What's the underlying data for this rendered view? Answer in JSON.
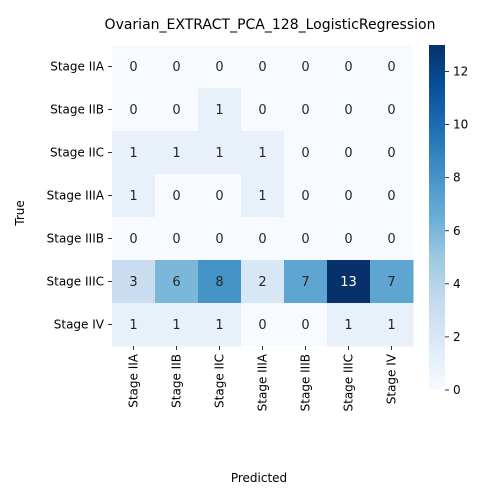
{
  "chart_data": {
    "type": "heatmap",
    "title": "Ovarian_EXTRACT_PCA_128_LogisticRegression",
    "xlabel": "Predicted",
    "ylabel": "True",
    "x_categories": [
      "Stage IIA",
      "Stage IIB",
      "Stage IIC",
      "Stage IIIA",
      "Stage IIIB",
      "Stage IIIC",
      "Stage IV"
    ],
    "y_categories": [
      "Stage IIA",
      "Stage IIB",
      "Stage IIC",
      "Stage IIIA",
      "Stage IIIB",
      "Stage IIIC",
      "Stage IV"
    ],
    "values": [
      [
        0,
        0,
        0,
        0,
        0,
        0,
        0
      ],
      [
        0,
        0,
        1,
        0,
        0,
        0,
        0
      ],
      [
        1,
        1,
        1,
        1,
        0,
        0,
        0
      ],
      [
        1,
        0,
        0,
        1,
        0,
        0,
        0
      ],
      [
        0,
        0,
        0,
        0,
        0,
        0,
        0
      ],
      [
        3,
        6,
        8,
        2,
        7,
        13,
        7
      ],
      [
        1,
        1,
        1,
        0,
        0,
        1,
        1
      ]
    ],
    "colorbar": {
      "min": 0,
      "max": 13,
      "ticks": [
        0,
        2,
        4,
        6,
        8,
        10,
        12
      ]
    },
    "colormap": "Blues",
    "grid": false
  }
}
